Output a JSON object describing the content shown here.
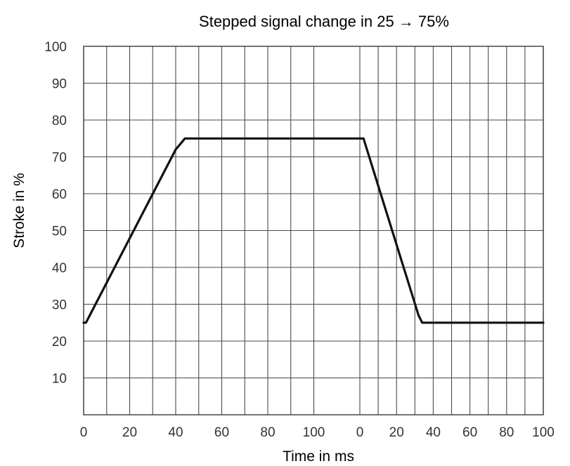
{
  "chart_data": {
    "type": "line",
    "title": "Stepped signal change in 25 → 75%",
    "xlabel": "Time in ms",
    "ylabel": "Stroke in %",
    "ylim": [
      0,
      100
    ],
    "y_ticks": [
      "10",
      "20",
      "30",
      "40",
      "50",
      "60",
      "70",
      "80",
      "90",
      "100"
    ],
    "x_ticks_left": [
      "0",
      "20",
      "40",
      "60",
      "80",
      "100"
    ],
    "x_ticks_right": [
      "0",
      "20",
      "40",
      "60",
      "80",
      "100"
    ],
    "grid": true,
    "panels": [
      {
        "xlim": [
          0,
          120
        ],
        "x": [
          0,
          1,
          40,
          44,
          48,
          120
        ],
        "y": [
          25,
          25,
          72,
          75,
          75,
          75
        ]
      },
      {
        "xlim": [
          0,
          100
        ],
        "x": [
          0,
          2,
          32,
          34,
          100
        ],
        "y": [
          75,
          75,
          27,
          25,
          25
        ]
      }
    ]
  }
}
